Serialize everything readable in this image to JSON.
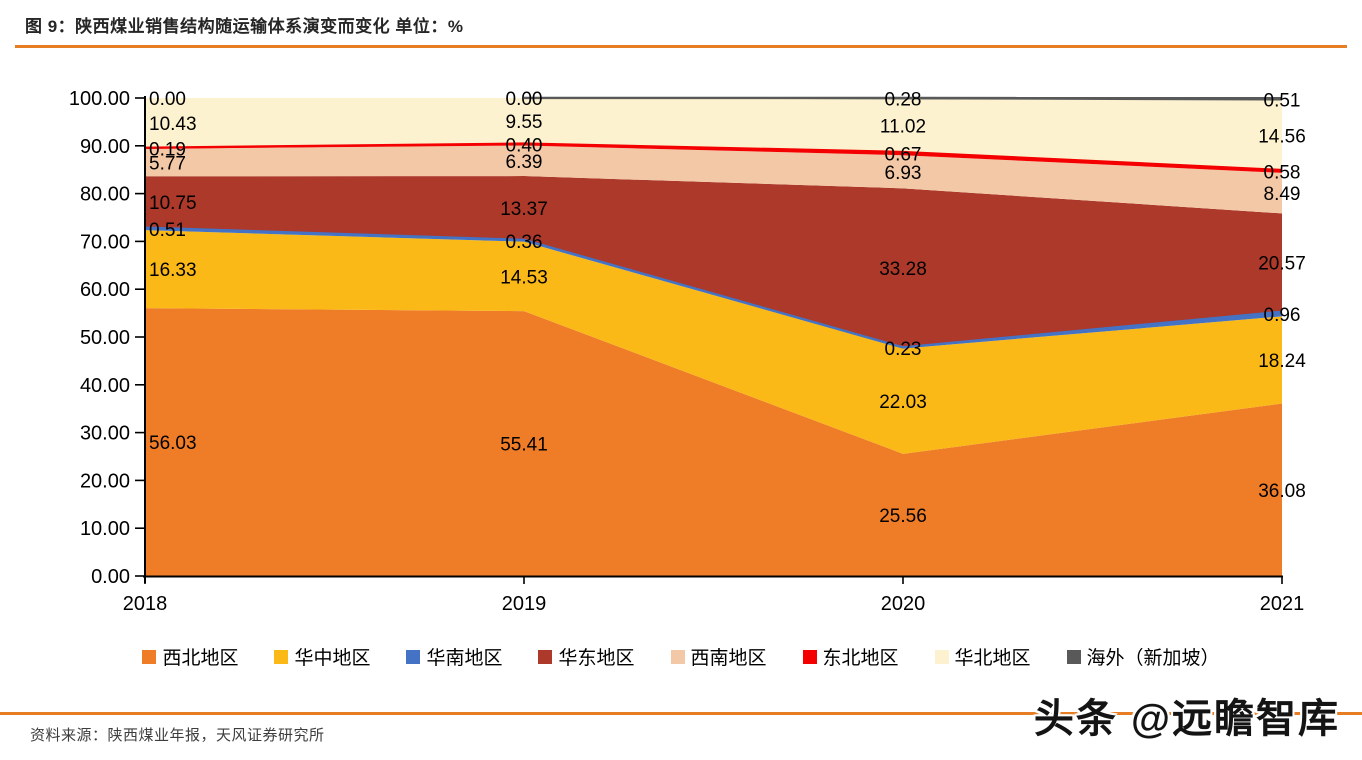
{
  "header": {
    "figure_title": "图 9：陕西煤业销售结构随运输体系演变而变化  单位：%"
  },
  "footer": {
    "source": "资料来源：陕西煤业年报，天风证券研究所"
  },
  "watermark": {
    "text": "头条 @远瞻智库"
  },
  "accent_color": "#E87E23",
  "chart_data": {
    "type": "area",
    "stacked": true,
    "percent_stacked": true,
    "unit": "%",
    "title": "陕西煤业销售结构随运输体系演变而变化",
    "xlabel": "",
    "ylabel": "",
    "ylim": [
      0,
      100
    ],
    "grid": false,
    "legend_position": "bottom",
    "categories": [
      "2018",
      "2019",
      "2020",
      "2021"
    ],
    "y_axis": {
      "min": 0,
      "max": 100,
      "step": 10,
      "tick_labels": [
        "0.00",
        "10.00",
        "20.00",
        "30.00",
        "40.00",
        "50.00",
        "60.00",
        "70.00",
        "80.00",
        "90.00",
        "100.00"
      ]
    },
    "series": [
      {
        "name": "西北地区",
        "color": "#EF7D28",
        "line": false,
        "values": [
          56.03,
          55.41,
          25.56,
          36.08
        ]
      },
      {
        "name": "华中地区",
        "color": "#FBB917",
        "line": false,
        "values": [
          16.33,
          14.53,
          22.03,
          18.24
        ]
      },
      {
        "name": "华南地区",
        "color": "#4472C4",
        "line": true,
        "values": [
          0.51,
          0.36,
          0.23,
          0.96
        ]
      },
      {
        "name": "华东地区",
        "color": "#AC392A",
        "line": false,
        "values": [
          10.75,
          13.37,
          33.28,
          20.57
        ]
      },
      {
        "name": "西南地区",
        "color": "#F3C8A6",
        "line": false,
        "values": [
          5.77,
          6.39,
          6.93,
          8.49
        ]
      },
      {
        "name": "东北地区",
        "color": "#F40000",
        "line": true,
        "values": [
          0.19,
          0.4,
          0.67,
          0.58
        ]
      },
      {
        "name": "华北地区",
        "color": "#FDF2CF",
        "line": false,
        "values": [
          10.43,
          9.55,
          11.02,
          14.56
        ]
      },
      {
        "name": "海外（新加坡）",
        "color": "#595959",
        "line": true,
        "values": [
          0.0,
          0.0,
          0.28,
          0.51
        ]
      }
    ]
  }
}
